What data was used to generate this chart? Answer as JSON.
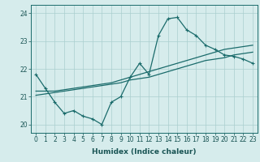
{
  "xlabel": "Humidex (Indice chaleur)",
  "ylabel": "",
  "bg_color": "#d6ecec",
  "grid_color": "#aacfcf",
  "line_color": "#1a6b6b",
  "x_values": [
    0,
    1,
    2,
    3,
    4,
    5,
    6,
    7,
    8,
    9,
    10,
    11,
    12,
    13,
    14,
    15,
    16,
    17,
    18,
    19,
    20,
    21,
    22,
    23
  ],
  "line1": [
    21.8,
    21.3,
    20.8,
    20.4,
    20.5,
    20.3,
    20.2,
    20.0,
    20.8,
    21.0,
    21.7,
    22.2,
    21.8,
    23.2,
    23.8,
    23.85,
    23.4,
    23.2,
    22.85,
    22.7,
    22.5,
    22.45,
    22.35,
    22.2
  ],
  "line2": [
    21.2,
    21.2,
    21.2,
    21.25,
    21.3,
    21.35,
    21.4,
    21.45,
    21.5,
    21.6,
    21.7,
    21.8,
    21.9,
    22.0,
    22.1,
    22.2,
    22.3,
    22.4,
    22.5,
    22.6,
    22.7,
    22.75,
    22.8,
    22.85
  ],
  "line3": [
    21.05,
    21.1,
    21.15,
    21.2,
    21.25,
    21.3,
    21.35,
    21.4,
    21.45,
    21.5,
    21.6,
    21.65,
    21.7,
    21.8,
    21.9,
    22.0,
    22.1,
    22.2,
    22.3,
    22.35,
    22.4,
    22.5,
    22.55,
    22.6
  ],
  "ylim": [
    19.7,
    24.3
  ],
  "yticks": [
    20,
    21,
    22,
    23,
    24
  ],
  "xticks": [
    0,
    1,
    2,
    3,
    4,
    5,
    6,
    7,
    8,
    9,
    10,
    11,
    12,
    13,
    14,
    15,
    16,
    17,
    18,
    19,
    20,
    21,
    22,
    23
  ],
  "marker": "+",
  "tick_fontsize": 5.5,
  "xlabel_fontsize": 6.5
}
